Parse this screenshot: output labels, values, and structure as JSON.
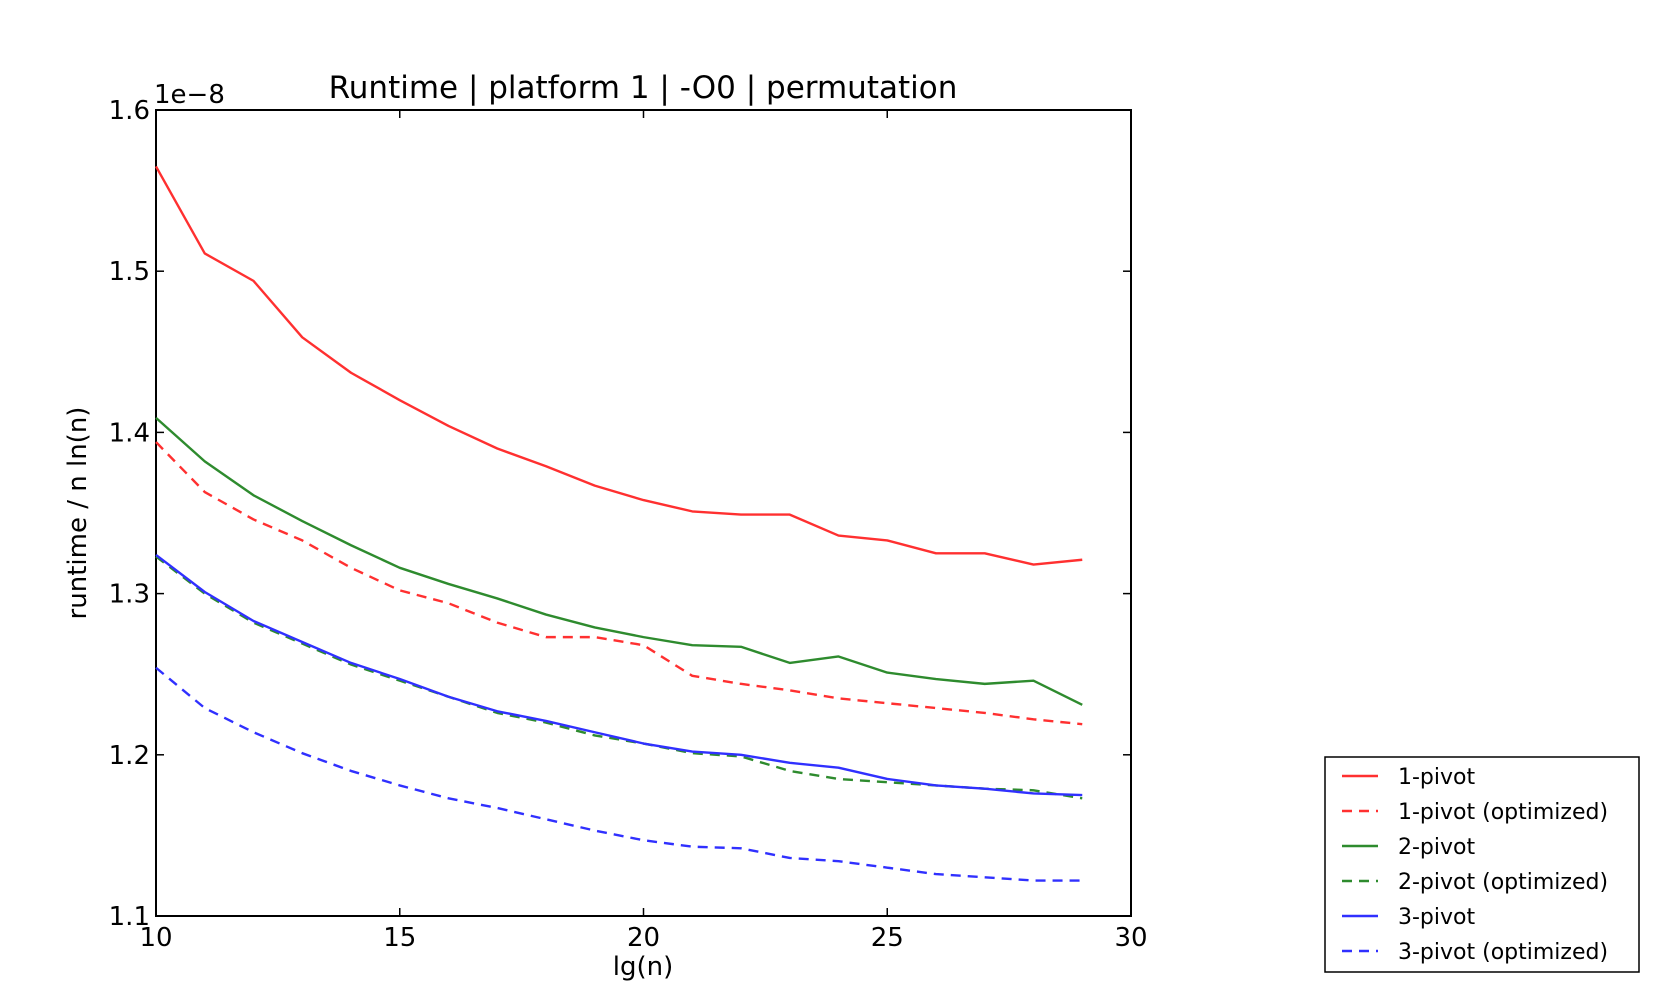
{
  "chart_data": {
    "type": "line",
    "title": "Runtime | platform 1 | -O0 | permutation",
    "xlabel": "lg(n)",
    "ylabel": "runtime / n ln(n)",
    "y_offset_label": "1e−8",
    "xlim": [
      10,
      30
    ],
    "ylim": [
      1.1,
      1.6
    ],
    "x_ticks": [
      "10",
      "15",
      "20",
      "25",
      "30"
    ],
    "y_ticks": [
      "1.1",
      "1.2",
      "1.3",
      "1.4",
      "1.5",
      "1.6"
    ],
    "x": [
      10,
      11,
      12,
      13,
      14,
      15,
      16,
      17,
      18,
      19,
      20,
      21,
      22,
      23,
      24,
      25,
      26,
      27,
      28,
      29
    ],
    "legend_position": "outside-bottom-right",
    "grid": false,
    "series": [
      {
        "name": "1-pivot",
        "color": "#ff3030",
        "dash": "solid",
        "values": [
          1.565,
          1.511,
          1.494,
          1.459,
          1.437,
          1.42,
          1.404,
          1.39,
          1.379,
          1.367,
          1.358,
          1.351,
          1.349,
          1.349,
          1.336,
          1.333,
          1.325,
          1.325,
          1.318,
          1.321
        ]
      },
      {
        "name": "1-pivot (optimized)",
        "color": "#ff3030",
        "dash": "dashed",
        "values": [
          1.394,
          1.363,
          1.346,
          1.333,
          1.316,
          1.302,
          1.294,
          1.282,
          1.273,
          1.273,
          1.268,
          1.249,
          1.244,
          1.24,
          1.235,
          1.232,
          1.229,
          1.226,
          1.222,
          1.219
        ]
      },
      {
        "name": "2-pivot",
        "color": "#2e8b2e",
        "dash": "solid",
        "values": [
          1.409,
          1.382,
          1.361,
          1.345,
          1.33,
          1.316,
          1.306,
          1.297,
          1.287,
          1.279,
          1.273,
          1.268,
          1.267,
          1.257,
          1.261,
          1.251,
          1.247,
          1.244,
          1.246,
          1.231
        ]
      },
      {
        "name": "2-pivot (optimized)",
        "color": "#2e8b2e",
        "dash": "dashed",
        "values": [
          1.323,
          1.3,
          1.282,
          1.269,
          1.256,
          1.246,
          1.236,
          1.226,
          1.22,
          1.212,
          1.207,
          1.201,
          1.199,
          1.19,
          1.185,
          1.183,
          1.181,
          1.179,
          1.178,
          1.173
        ]
      },
      {
        "name": "3-pivot",
        "color": "#3030ff",
        "dash": "solid",
        "values": [
          1.324,
          1.301,
          1.283,
          1.27,
          1.257,
          1.247,
          1.236,
          1.227,
          1.221,
          1.214,
          1.207,
          1.202,
          1.2,
          1.195,
          1.192,
          1.185,
          1.181,
          1.179,
          1.176,
          1.175
        ]
      },
      {
        "name": "3-pivot (optimized)",
        "color": "#3030ff",
        "dash": "dashed",
        "values": [
          1.254,
          1.229,
          1.214,
          1.201,
          1.19,
          1.181,
          1.173,
          1.167,
          1.16,
          1.153,
          1.147,
          1.143,
          1.142,
          1.136,
          1.134,
          1.13,
          1.126,
          1.124,
          1.122,
          1.122
        ]
      }
    ]
  }
}
